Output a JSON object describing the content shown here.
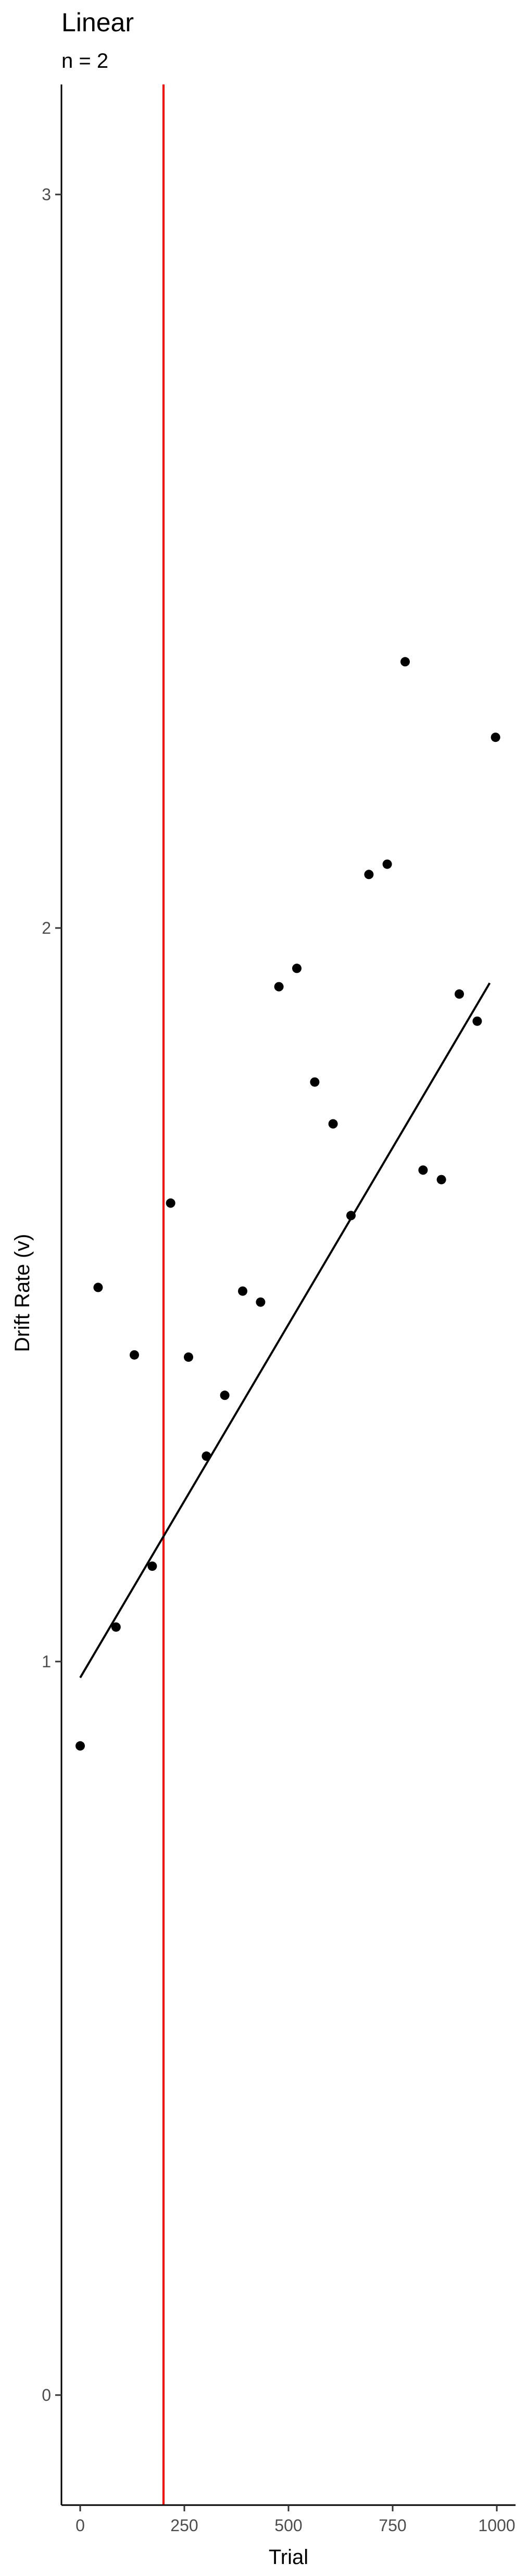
{
  "chart_data": {
    "type": "scatter",
    "title": "Linear",
    "subtitle": "n = 2",
    "xlabel": "Trial",
    "ylabel": "Drift Rate (v)",
    "xlim": [
      -45,
      1045
    ],
    "ylim": [
      -0.15,
      3.15
    ],
    "xticks": [
      0,
      250,
      500,
      750,
      1000
    ],
    "yticks": [
      0,
      1,
      2,
      3
    ],
    "grid": false,
    "legend": "none",
    "points": [
      {
        "x": 0,
        "y": 0.885
      },
      {
        "x": 43,
        "y": 1.51
      },
      {
        "x": 86,
        "y": 1.047
      },
      {
        "x": 130,
        "y": 1.418
      },
      {
        "x": 173,
        "y": 1.13
      },
      {
        "x": 217,
        "y": 1.625
      },
      {
        "x": 260,
        "y": 1.415
      },
      {
        "x": 303,
        "y": 1.28
      },
      {
        "x": 347,
        "y": 1.363
      },
      {
        "x": 390,
        "y": 1.505
      },
      {
        "x": 433,
        "y": 1.49
      },
      {
        "x": 477,
        "y": 1.92
      },
      {
        "x": 520,
        "y": 1.945
      },
      {
        "x": 563,
        "y": 1.79
      },
      {
        "x": 607,
        "y": 1.733
      },
      {
        "x": 650,
        "y": 1.608
      },
      {
        "x": 693,
        "y": 2.073
      },
      {
        "x": 737,
        "y": 2.087
      },
      {
        "x": 780,
        "y": 2.363
      },
      {
        "x": 823,
        "y": 1.67
      },
      {
        "x": 867,
        "y": 1.657
      },
      {
        "x": 910,
        "y": 1.91
      },
      {
        "x": 953,
        "y": 1.873
      },
      {
        "x": 997,
        "y": 2.26
      }
    ],
    "fit_line": {
      "x": [
        0,
        983
      ],
      "y": [
        0.978,
        1.925
      ],
      "color": "#000000"
    },
    "reference_line": {
      "x": 200,
      "color": "#ff0000"
    },
    "point_color": "#000000",
    "axis_color": "#000000"
  }
}
